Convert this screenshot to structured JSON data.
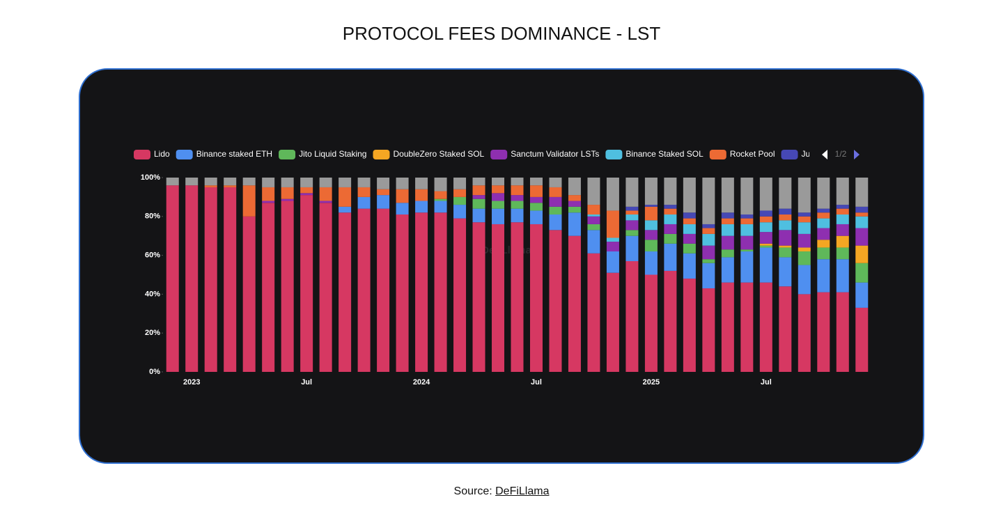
{
  "title": "PROTOCOL FEES DOMINANCE - LST",
  "source_label": "Source:",
  "source_link": "DeFiLlama",
  "chart_data": {
    "type": "stacked_bar",
    "watermark": "DefiLlama",
    "legend_page": "1/2",
    "categories": [
      null,
      "2023",
      null,
      null,
      null,
      null,
      null,
      "Jul",
      null,
      null,
      null,
      null,
      null,
      "2024",
      null,
      null,
      null,
      null,
      null,
      "Jul",
      null,
      null,
      null,
      null,
      null,
      "2025",
      null,
      null,
      null,
      null,
      null,
      "Jul",
      null,
      null,
      null,
      null,
      null
    ],
    "ylim": [
      0,
      100
    ],
    "yticks": [
      {
        "value": 0,
        "label": "0%"
      },
      {
        "value": 20,
        "label": "20%"
      },
      {
        "value": 40,
        "label": "40%"
      },
      {
        "value": 60,
        "label": "60%"
      },
      {
        "value": 80,
        "label": "80%"
      },
      {
        "value": 100,
        "label": "100%"
      }
    ],
    "series": [
      {
        "name": "Lido",
        "color": "#d63862",
        "values": [
          96,
          96,
          95,
          95,
          80,
          87,
          88,
          91,
          87,
          82,
          84,
          84,
          81,
          82,
          82,
          79,
          77,
          76,
          77,
          76,
          73,
          70,
          61,
          51,
          57,
          50,
          52,
          48,
          43,
          46,
          46,
          46,
          44,
          40,
          41,
          41,
          33
        ]
      },
      {
        "name": "Binance staked ETH",
        "color": "#4f8ff0",
        "values": [
          0,
          0,
          0,
          0,
          0,
          0,
          0,
          0,
          0,
          3,
          6,
          7,
          6,
          6,
          6,
          7,
          7,
          8,
          7,
          7,
          8,
          12,
          12,
          11,
          13,
          12,
          14,
          13,
          13,
          13,
          16,
          18,
          15,
          15,
          17,
          17,
          13
        ]
      },
      {
        "name": "Jito Liquid Staking",
        "color": "#5fb85a",
        "values": [
          0,
          0,
          0,
          0,
          0,
          0,
          0,
          0,
          0,
          0,
          0,
          0,
          0,
          0,
          1,
          4,
          5,
          4,
          4,
          4,
          4,
          3,
          3,
          0,
          3,
          6,
          5,
          5,
          2,
          4,
          1,
          1,
          5,
          7,
          6,
          6,
          10
        ]
      },
      {
        "name": "DoubleZero Staked SOL",
        "color": "#f5a623",
        "values": [
          0,
          0,
          0,
          0,
          0,
          0,
          0,
          0,
          0,
          0,
          0,
          0,
          0,
          0,
          0,
          0,
          0,
          0,
          0,
          0,
          0,
          0,
          0,
          0,
          0,
          0,
          0,
          0,
          0,
          0,
          0,
          1,
          1,
          2,
          4,
          6,
          9
        ]
      },
      {
        "name": "Sanctum Validator LSTs",
        "color": "#8e2fb0",
        "values": [
          0,
          0,
          0,
          0,
          0,
          1,
          1,
          1,
          1,
          0,
          0,
          0,
          0,
          0,
          0,
          0,
          2,
          4,
          3,
          3,
          5,
          3,
          4,
          5,
          5,
          5,
          5,
          5,
          7,
          7,
          7,
          6,
          8,
          7,
          6,
          6,
          9
        ]
      },
      {
        "name": "Binance Staked SOL",
        "color": "#4fbfe0",
        "values": [
          0,
          0,
          0,
          0,
          0,
          0,
          0,
          0,
          0,
          0,
          0,
          0,
          0,
          0,
          0,
          0,
          0,
          0,
          0,
          0,
          0,
          0,
          1,
          2,
          3,
          5,
          5,
          5,
          6,
          6,
          6,
          5,
          5,
          6,
          5,
          5,
          6
        ]
      },
      {
        "name": "Rocket Pool",
        "color": "#ec6a34",
        "values": [
          0,
          0,
          1,
          1,
          16,
          7,
          6,
          3,
          7,
          10,
          5,
          3,
          7,
          6,
          4,
          4,
          5,
          4,
          5,
          6,
          5,
          3,
          5,
          14,
          2,
          7,
          3,
          3,
          3,
          3,
          3,
          3,
          3,
          3,
          3,
          3,
          2
        ]
      },
      {
        "name": "Jup",
        "color": "#4648b5",
        "values": [
          0,
          0,
          0,
          0,
          0,
          0,
          0,
          0,
          0,
          0,
          0,
          0,
          0,
          0,
          0,
          0,
          0,
          0,
          0,
          0,
          0,
          0,
          0,
          0,
          2,
          1,
          2,
          3,
          2,
          3,
          2,
          3,
          3,
          2,
          2,
          2,
          3
        ]
      },
      {
        "color": "#9a9a9a",
        "values": [
          4,
          4,
          4,
          4,
          4,
          5,
          5,
          5,
          5,
          5,
          5,
          6,
          6,
          6,
          7,
          6,
          4,
          4,
          4,
          4,
          5,
          9,
          14,
          17,
          15,
          14,
          14,
          18,
          24,
          18,
          19,
          17,
          16,
          18,
          16,
          14,
          15
        ]
      }
    ]
  }
}
